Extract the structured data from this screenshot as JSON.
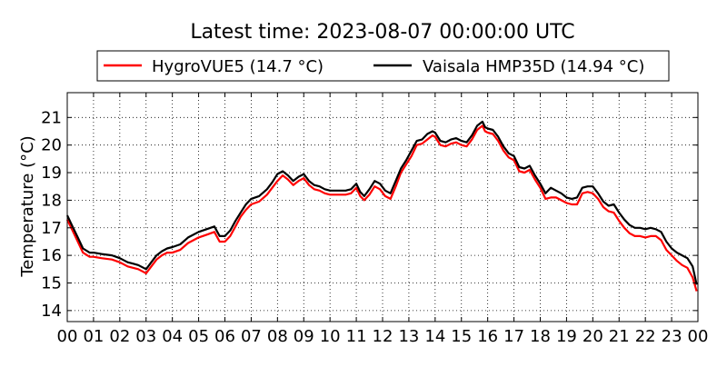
{
  "chart_data": {
    "type": "line",
    "title": "Latest time: 2023-08-07 00:00:00 UTC",
    "xlabel": "",
    "ylabel": "Temperature (°C)",
    "xlim": [
      0,
      24
    ],
    "ylim": [
      13.6,
      21.9
    ],
    "grid": true,
    "grid_style": "dotted",
    "legend_position": "top-center",
    "x_ticks": [
      0,
      1,
      2,
      3,
      4,
      5,
      6,
      7,
      8,
      9,
      10,
      11,
      12,
      13,
      14,
      15,
      16,
      17,
      18,
      19,
      20,
      21,
      22,
      23,
      24
    ],
    "x_tick_labels": [
      "00",
      "01",
      "02",
      "03",
      "04",
      "05",
      "06",
      "07",
      "08",
      "09",
      "10",
      "11",
      "12",
      "13",
      "14",
      "15",
      "16",
      "17",
      "18",
      "19",
      "20",
      "21",
      "22",
      "23",
      "00"
    ],
    "y_ticks": [
      14,
      15,
      16,
      17,
      18,
      19,
      20,
      21
    ],
    "y_tick_labels": [
      "14",
      "15",
      "16",
      "17",
      "18",
      "19",
      "20",
      "21"
    ],
    "series": [
      {
        "name": "HygroVUE5 (14.7 °C)",
        "color": "#ff0000",
        "points": [
          [
            0.0,
            17.3
          ],
          [
            0.2,
            16.9
          ],
          [
            0.4,
            16.5
          ],
          [
            0.6,
            16.1
          ],
          [
            0.85,
            15.95
          ],
          [
            1.0,
            15.95
          ],
          [
            1.3,
            15.9
          ],
          [
            1.7,
            15.85
          ],
          [
            2.0,
            15.75
          ],
          [
            2.3,
            15.6
          ],
          [
            2.5,
            15.55
          ],
          [
            2.7,
            15.5
          ],
          [
            2.9,
            15.4
          ],
          [
            3.0,
            15.35
          ],
          [
            3.2,
            15.6
          ],
          [
            3.4,
            15.85
          ],
          [
            3.6,
            16.0
          ],
          [
            3.8,
            16.1
          ],
          [
            4.0,
            16.1
          ],
          [
            4.3,
            16.2
          ],
          [
            4.6,
            16.45
          ],
          [
            5.0,
            16.65
          ],
          [
            5.3,
            16.75
          ],
          [
            5.6,
            16.85
          ],
          [
            5.8,
            16.5
          ],
          [
            6.0,
            16.5
          ],
          [
            6.2,
            16.7
          ],
          [
            6.4,
            17.05
          ],
          [
            6.6,
            17.4
          ],
          [
            6.8,
            17.65
          ],
          [
            7.0,
            17.85
          ],
          [
            7.3,
            17.95
          ],
          [
            7.6,
            18.2
          ],
          [
            7.8,
            18.45
          ],
          [
            8.0,
            18.7
          ],
          [
            8.2,
            18.9
          ],
          [
            8.4,
            18.75
          ],
          [
            8.6,
            18.55
          ],
          [
            8.8,
            18.7
          ],
          [
            9.0,
            18.8
          ],
          [
            9.2,
            18.55
          ],
          [
            9.4,
            18.4
          ],
          [
            9.6,
            18.35
          ],
          [
            9.8,
            18.25
          ],
          [
            10.0,
            18.2
          ],
          [
            10.3,
            18.2
          ],
          [
            10.6,
            18.2
          ],
          [
            10.8,
            18.25
          ],
          [
            11.0,
            18.45
          ],
          [
            11.15,
            18.15
          ],
          [
            11.3,
            18.0
          ],
          [
            11.5,
            18.2
          ],
          [
            11.7,
            18.5
          ],
          [
            11.9,
            18.4
          ],
          [
            12.1,
            18.15
          ],
          [
            12.3,
            18.05
          ],
          [
            12.5,
            18.5
          ],
          [
            12.7,
            19.0
          ],
          [
            12.9,
            19.3
          ],
          [
            13.1,
            19.6
          ],
          [
            13.3,
            20.0
          ],
          [
            13.5,
            20.05
          ],
          [
            13.7,
            20.2
          ],
          [
            13.9,
            20.35
          ],
          [
            14.0,
            20.3
          ],
          [
            14.2,
            20.0
          ],
          [
            14.4,
            19.95
          ],
          [
            14.6,
            20.05
          ],
          [
            14.8,
            20.1
          ],
          [
            15.0,
            20.0
          ],
          [
            15.2,
            19.95
          ],
          [
            15.4,
            20.2
          ],
          [
            15.6,
            20.55
          ],
          [
            15.8,
            20.7
          ],
          [
            15.9,
            20.5
          ],
          [
            16.0,
            20.45
          ],
          [
            16.2,
            20.4
          ],
          [
            16.4,
            20.15
          ],
          [
            16.6,
            19.8
          ],
          [
            16.8,
            19.55
          ],
          [
            17.0,
            19.45
          ],
          [
            17.2,
            19.05
          ],
          [
            17.4,
            19.0
          ],
          [
            17.6,
            19.1
          ],
          [
            17.8,
            18.75
          ],
          [
            18.0,
            18.45
          ],
          [
            18.2,
            18.05
          ],
          [
            18.4,
            18.1
          ],
          [
            18.6,
            18.1
          ],
          [
            18.8,
            18.0
          ],
          [
            19.0,
            17.9
          ],
          [
            19.2,
            17.85
          ],
          [
            19.4,
            17.85
          ],
          [
            19.6,
            18.25
          ],
          [
            19.8,
            18.3
          ],
          [
            20.0,
            18.25
          ],
          [
            20.2,
            18.05
          ],
          [
            20.4,
            17.75
          ],
          [
            20.6,
            17.6
          ],
          [
            20.8,
            17.55
          ],
          [
            21.0,
            17.25
          ],
          [
            21.2,
            17.0
          ],
          [
            21.4,
            16.8
          ],
          [
            21.6,
            16.7
          ],
          [
            21.8,
            16.7
          ],
          [
            22.0,
            16.65
          ],
          [
            22.2,
            16.7
          ],
          [
            22.4,
            16.7
          ],
          [
            22.6,
            16.55
          ],
          [
            22.8,
            16.2
          ],
          [
            23.0,
            16.0
          ],
          [
            23.2,
            15.8
          ],
          [
            23.4,
            15.65
          ],
          [
            23.6,
            15.55
          ],
          [
            23.8,
            15.2
          ],
          [
            23.95,
            14.7
          ]
        ]
      },
      {
        "name": "Vaisala HMP35D (14.94 °C)",
        "color": "#000000",
        "points": [
          [
            0.0,
            17.45
          ],
          [
            0.2,
            17.05
          ],
          [
            0.4,
            16.65
          ],
          [
            0.6,
            16.25
          ],
          [
            0.85,
            16.1
          ],
          [
            1.0,
            16.1
          ],
          [
            1.3,
            16.05
          ],
          [
            1.7,
            16.0
          ],
          [
            2.0,
            15.9
          ],
          [
            2.3,
            15.75
          ],
          [
            2.5,
            15.7
          ],
          [
            2.7,
            15.65
          ],
          [
            2.9,
            15.55
          ],
          [
            3.0,
            15.5
          ],
          [
            3.2,
            15.75
          ],
          [
            3.4,
            16.0
          ],
          [
            3.6,
            16.15
          ],
          [
            3.8,
            16.25
          ],
          [
            4.0,
            16.3
          ],
          [
            4.3,
            16.4
          ],
          [
            4.6,
            16.65
          ],
          [
            5.0,
            16.85
          ],
          [
            5.3,
            16.95
          ],
          [
            5.6,
            17.05
          ],
          [
            5.8,
            16.7
          ],
          [
            6.0,
            16.7
          ],
          [
            6.2,
            16.9
          ],
          [
            6.4,
            17.25
          ],
          [
            6.6,
            17.55
          ],
          [
            6.8,
            17.85
          ],
          [
            7.0,
            18.05
          ],
          [
            7.3,
            18.15
          ],
          [
            7.6,
            18.4
          ],
          [
            7.8,
            18.65
          ],
          [
            8.0,
            18.95
          ],
          [
            8.2,
            19.05
          ],
          [
            8.4,
            18.9
          ],
          [
            8.6,
            18.7
          ],
          [
            8.8,
            18.85
          ],
          [
            9.0,
            18.95
          ],
          [
            9.2,
            18.7
          ],
          [
            9.4,
            18.55
          ],
          [
            9.6,
            18.5
          ],
          [
            9.8,
            18.4
          ],
          [
            10.0,
            18.35
          ],
          [
            10.3,
            18.35
          ],
          [
            10.6,
            18.35
          ],
          [
            10.8,
            18.4
          ],
          [
            11.0,
            18.6
          ],
          [
            11.15,
            18.3
          ],
          [
            11.3,
            18.15
          ],
          [
            11.5,
            18.4
          ],
          [
            11.7,
            18.7
          ],
          [
            11.9,
            18.6
          ],
          [
            12.1,
            18.35
          ],
          [
            12.3,
            18.25
          ],
          [
            12.5,
            18.7
          ],
          [
            12.7,
            19.15
          ],
          [
            12.9,
            19.45
          ],
          [
            13.1,
            19.8
          ],
          [
            13.3,
            20.15
          ],
          [
            13.5,
            20.2
          ],
          [
            13.7,
            20.4
          ],
          [
            13.9,
            20.5
          ],
          [
            14.0,
            20.45
          ],
          [
            14.2,
            20.15
          ],
          [
            14.4,
            20.1
          ],
          [
            14.6,
            20.2
          ],
          [
            14.8,
            20.25
          ],
          [
            15.0,
            20.15
          ],
          [
            15.2,
            20.1
          ],
          [
            15.4,
            20.35
          ],
          [
            15.6,
            20.7
          ],
          [
            15.8,
            20.85
          ],
          [
            15.9,
            20.65
          ],
          [
            16.0,
            20.6
          ],
          [
            16.2,
            20.55
          ],
          [
            16.4,
            20.3
          ],
          [
            16.6,
            19.95
          ],
          [
            16.8,
            19.7
          ],
          [
            17.0,
            19.6
          ],
          [
            17.2,
            19.2
          ],
          [
            17.4,
            19.15
          ],
          [
            17.6,
            19.25
          ],
          [
            17.8,
            18.9
          ],
          [
            18.0,
            18.6
          ],
          [
            18.2,
            18.25
          ],
          [
            18.4,
            18.45
          ],
          [
            18.6,
            18.35
          ],
          [
            18.8,
            18.25
          ],
          [
            19.0,
            18.1
          ],
          [
            19.2,
            18.05
          ],
          [
            19.4,
            18.1
          ],
          [
            19.6,
            18.45
          ],
          [
            19.8,
            18.5
          ],
          [
            20.0,
            18.5
          ],
          [
            20.2,
            18.25
          ],
          [
            20.4,
            17.95
          ],
          [
            20.6,
            17.8
          ],
          [
            20.8,
            17.85
          ],
          [
            21.0,
            17.55
          ],
          [
            21.2,
            17.3
          ],
          [
            21.4,
            17.1
          ],
          [
            21.6,
            17.0
          ],
          [
            21.8,
            17.0
          ],
          [
            22.0,
            16.95
          ],
          [
            22.2,
            17.0
          ],
          [
            22.4,
            16.95
          ],
          [
            22.6,
            16.85
          ],
          [
            22.8,
            16.5
          ],
          [
            23.0,
            16.25
          ],
          [
            23.2,
            16.1
          ],
          [
            23.4,
            16.0
          ],
          [
            23.6,
            15.9
          ],
          [
            23.8,
            15.6
          ],
          [
            23.95,
            14.94
          ]
        ]
      }
    ]
  }
}
